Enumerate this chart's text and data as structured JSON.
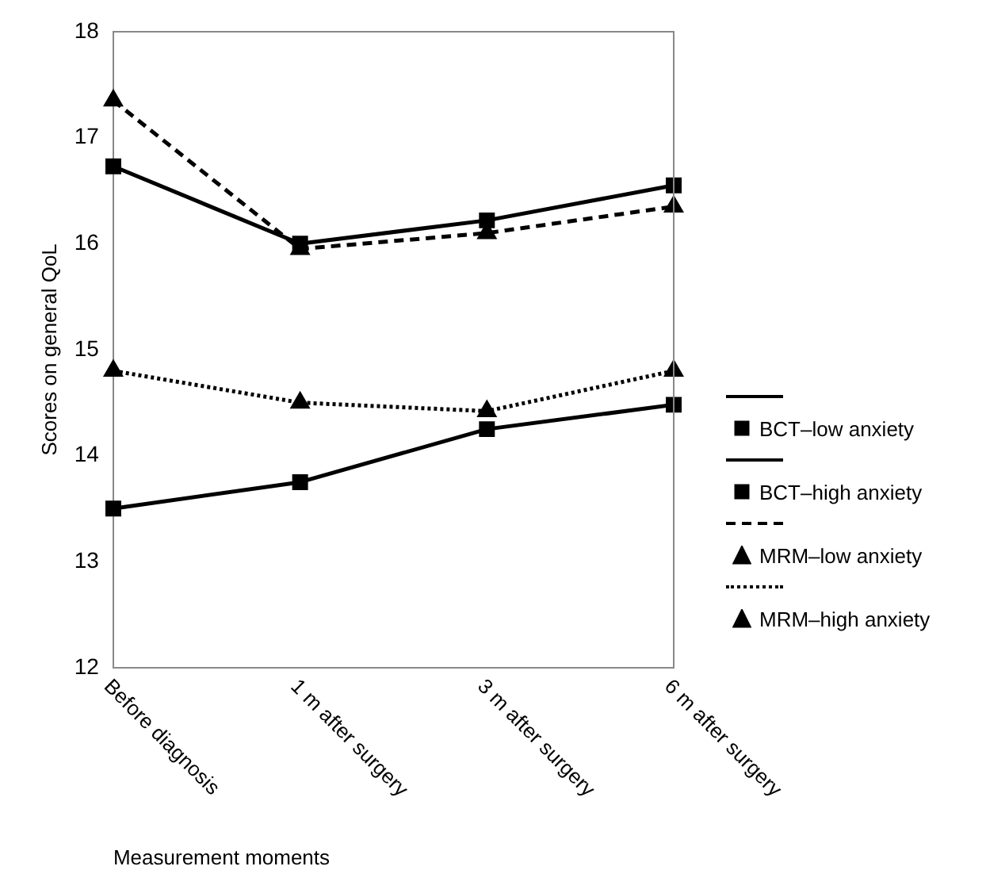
{
  "chart_data": {
    "type": "line",
    "xlabel": "Measurement moments",
    "ylabel": "Scores on general QoL",
    "categories": [
      "Before diagnosis",
      "1 m after surgery",
      "3 m after surgery",
      "6 m after surgery"
    ],
    "ylim": [
      12,
      18
    ],
    "yticks": [
      12,
      13,
      14,
      15,
      16,
      17,
      18
    ],
    "grid": false,
    "legend": "right",
    "series": [
      {
        "name": "BCT–low anxiety",
        "color": "#000000",
        "marker": "square",
        "line_style": "solid",
        "values": [
          16.73,
          16.0,
          16.22,
          16.55
        ]
      },
      {
        "name": "BCT–high anxiety",
        "color": "#000000",
        "marker": "square",
        "line_style": "solid",
        "values": [
          13.5,
          13.75,
          14.25,
          14.48
        ]
      },
      {
        "name": "MRM–low anxiety",
        "color": "#000000",
        "marker": "triangle",
        "line_style": "dashed",
        "values": [
          17.35,
          15.95,
          16.1,
          16.35
        ]
      },
      {
        "name": "MRM–high anxiety",
        "color": "#000000",
        "marker": "triangle",
        "line_style": "dotted",
        "values": [
          14.8,
          14.5,
          14.42,
          14.8
        ]
      }
    ]
  }
}
